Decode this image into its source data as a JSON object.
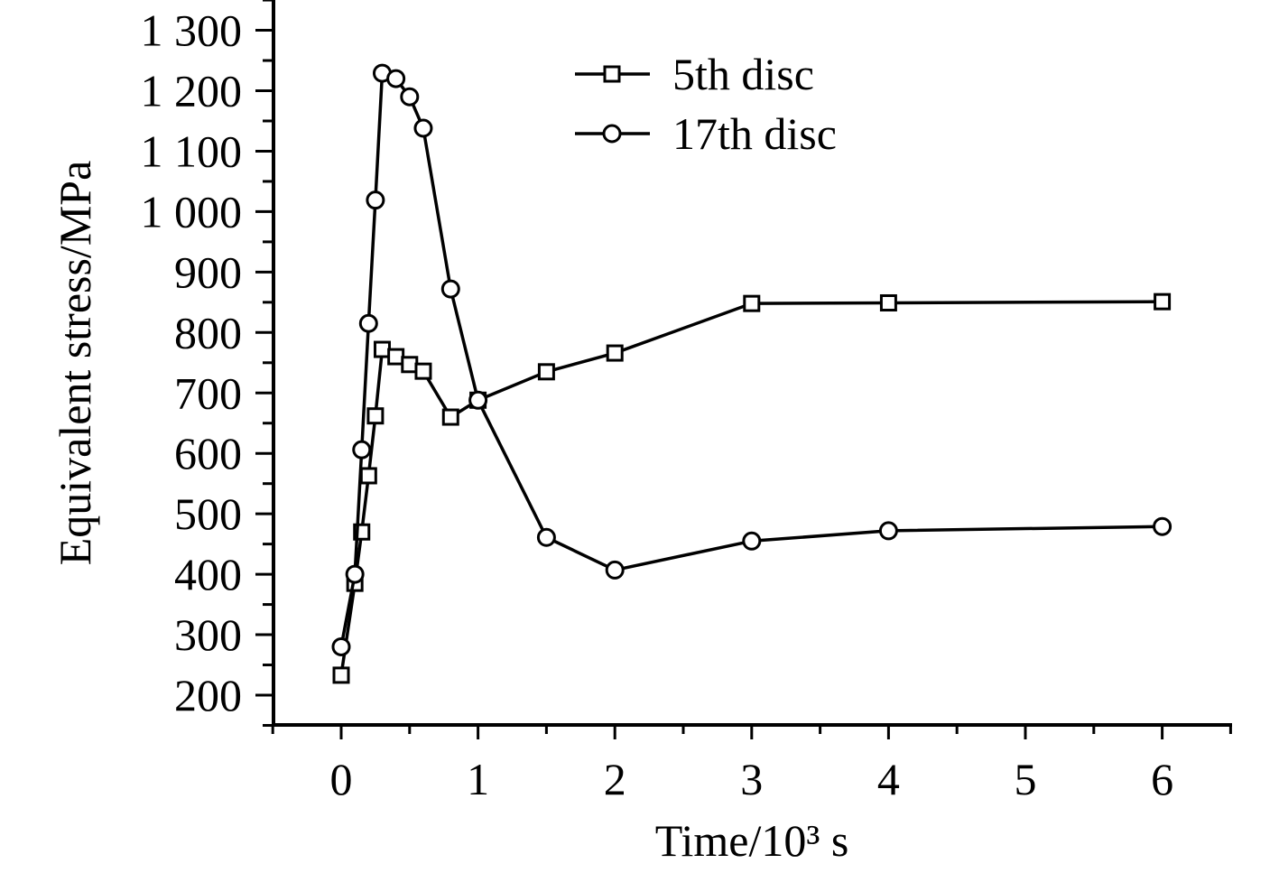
{
  "chart_data": {
    "type": "line",
    "xlabel": "Time/10³ s",
    "ylabel": "Equivalent stress/MPa",
    "xlim": [
      -0.5,
      6.5
    ],
    "ylim": [
      150,
      1350
    ],
    "xticks": [
      "0",
      "1",
      "2",
      "3",
      "4",
      "5",
      "6"
    ],
    "yticks": [
      "200",
      "300",
      "400",
      "500",
      "600",
      "700",
      "800",
      "900",
      "1 000",
      "1 100",
      "1 200",
      "1 300"
    ],
    "grid": false,
    "legend_position": "top-right",
    "series": [
      {
        "name": "5th disc",
        "marker": "square",
        "x": [
          0,
          0.1,
          0.15,
          0.2,
          0.25,
          0.3,
          0.4,
          0.5,
          0.6,
          0.8,
          1.0,
          1.5,
          2.0,
          3.0,
          4.0,
          6.0
        ],
        "y": [
          233,
          385,
          470,
          563,
          662,
          772,
          760,
          747,
          736,
          660,
          688,
          735,
          766,
          848,
          849,
          851
        ]
      },
      {
        "name": "17th disc",
        "marker": "circle",
        "x": [
          0,
          0.1,
          0.15,
          0.2,
          0.25,
          0.3,
          0.4,
          0.5,
          0.6,
          0.8,
          1.0,
          1.5,
          2.0,
          3.0,
          4.0,
          6.0
        ],
        "y": [
          280,
          400,
          606,
          815,
          1019,
          1229,
          1220,
          1190,
          1138,
          872,
          688,
          461,
          407,
          455,
          472,
          479
        ]
      }
    ]
  }
}
